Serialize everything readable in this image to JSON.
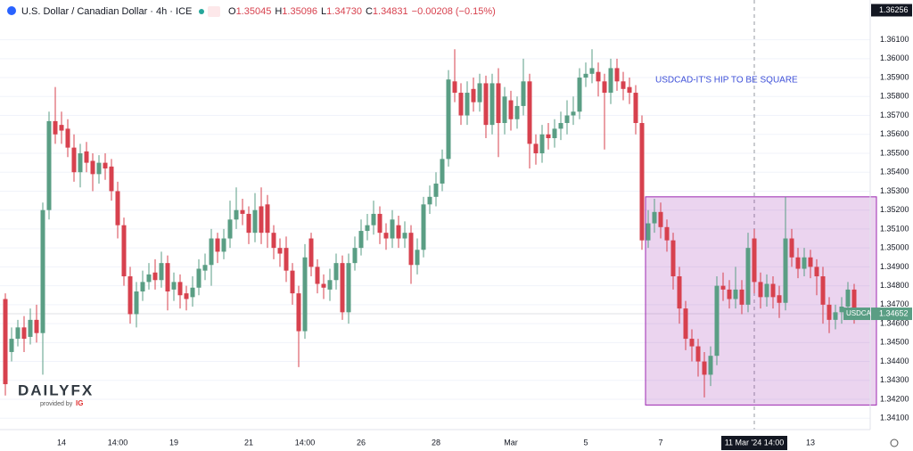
{
  "header": {
    "symbol": "U.S. Dollar / Canadian Dollar · 4h · ICE",
    "ohlc": [
      {
        "label": "O",
        "value": "1.35045"
      },
      {
        "label": "H",
        "value": "1.35096"
      },
      {
        "label": "L",
        "value": "1.34730"
      },
      {
        "label": "C",
        "value": "1.34831"
      }
    ],
    "change": "−0.00208 (−0.15%)"
  },
  "logo": {
    "name": "DAILYFX",
    "provided": "provided by",
    "brand": "IG"
  },
  "chart_data": {
    "type": "candlestick",
    "annotation": "USDCAD-IT'S HIP TO BE SQUARE",
    "categories": [
      null,
      null,
      null,
      null,
      null,
      null,
      null,
      null,
      null,
      "14",
      null,
      null,
      null,
      null,
      null,
      null,
      null,
      null,
      "14:00",
      null,
      null,
      null,
      null,
      null,
      null,
      null,
      null,
      "19",
      null,
      null,
      null,
      null,
      null,
      null,
      null,
      null,
      null,
      null,
      null,
      "21",
      null,
      null,
      null,
      null,
      null,
      null,
      null,
      null,
      "14:00",
      null,
      null,
      null,
      null,
      null,
      null,
      null,
      null,
      "26",
      null,
      null,
      null,
      null,
      null,
      null,
      null,
      null,
      null,
      null,
      null,
      "28",
      null,
      null,
      null,
      null,
      null,
      null,
      null,
      null,
      null,
      null,
      null,
      "Mar",
      null,
      null,
      null,
      null,
      null,
      null,
      null,
      null,
      null,
      null,
      null,
      "5",
      null,
      null,
      null,
      null,
      null,
      null,
      null,
      null,
      null,
      null,
      null,
      "7",
      null,
      null,
      null,
      null,
      null,
      null,
      null,
      null,
      null,
      null,
      null,
      null,
      null,
      null,
      "11 Mar '24  14:00",
      null,
      null,
      null,
      null,
      null,
      null,
      null,
      null,
      "13",
      null,
      null,
      null,
      null,
      null,
      null,
      null
    ],
    "crosshair_index": 120,
    "crosshair_price": 1.36256,
    "series": [
      {
        "name": "USDCAD",
        "up_color": "#5a9e84",
        "down_color": "#d7414e",
        "last_price": 1.34652,
        "open": [
          1.3473,
          1.3445,
          1.3452,
          1.3458,
          1.3453,
          1.3462,
          1.3455,
          1.352,
          1.3567,
          1.3565,
          1.3563,
          1.3553,
          1.354,
          1.3551,
          1.3546,
          1.3539,
          1.3545,
          1.3543,
          1.353,
          1.3512,
          1.3485,
          1.3465,
          1.3477,
          1.3482,
          1.3487,
          1.3483,
          1.3492,
          1.3478,
          1.3482,
          1.3476,
          1.3474,
          1.3479,
          1.3488,
          1.3491,
          1.3505,
          1.3498,
          1.3505,
          1.3515,
          1.352,
          1.3518,
          1.3508,
          1.3522,
          1.3523,
          1.3508,
          1.35,
          1.35,
          1.3488,
          1.3476,
          1.3456,
          1.3505,
          1.349,
          1.3481,
          1.3478,
          1.3483,
          1.3492,
          1.3466,
          1.3492,
          1.35,
          1.3509,
          1.3512,
          1.3518,
          1.3508,
          1.3505,
          1.3512,
          1.3505,
          1.3508,
          1.3491,
          1.3499,
          1.3523,
          1.3527,
          1.3534,
          1.3547,
          1.3588,
          1.3582,
          1.357,
          1.3584,
          1.3577,
          1.3587,
          1.3565,
          1.3587,
          1.3566,
          1.3578,
          1.3568,
          1.3575,
          1.3588,
          1.3555,
          1.355,
          1.356,
          1.3558,
          1.3563,
          1.3566,
          1.357,
          1.3572,
          1.359,
          1.3592,
          1.3593,
          1.3588,
          1.3582,
          1.3595,
          1.3588,
          1.3585,
          1.3582,
          1.3566,
          1.3504,
          1.3513,
          1.3519,
          1.3511,
          1.3504,
          1.3485,
          1.3468,
          1.3452,
          1.3448,
          1.344,
          1.3433,
          1.3443,
          1.348,
          1.3478,
          1.3473,
          1.3478,
          1.347,
          1.3505,
          1.3482,
          1.3474,
          1.3481,
          1.3475,
          1.3471,
          1.3505,
          1.3495,
          1.3489,
          1.3495,
          1.349,
          1.3485,
          1.347,
          1.3462,
          1.3466,
          1.3469,
          1.3478
        ],
        "high": [
          1.3476,
          1.3458,
          1.3462,
          1.3464,
          1.3468,
          1.347,
          1.3524,
          1.3572,
          1.3585,
          1.3572,
          1.3568,
          1.356,
          1.3555,
          1.3556,
          1.355,
          1.3549,
          1.355,
          1.3547,
          1.3535,
          1.3516,
          1.349,
          1.3482,
          1.3488,
          1.3492,
          1.3494,
          1.3498,
          1.3496,
          1.3487,
          1.3486,
          1.348,
          1.3485,
          1.3494,
          1.3497,
          1.351,
          1.3508,
          1.351,
          1.3525,
          1.3532,
          1.3526,
          1.3522,
          1.3529,
          1.3532,
          1.3528,
          1.3512,
          1.3505,
          1.3506,
          1.3492,
          1.348,
          1.3502,
          1.3508,
          1.3494,
          1.3486,
          1.3489,
          1.3497,
          1.3496,
          1.3497,
          1.3506,
          1.3515,
          1.3518,
          1.3525,
          1.3522,
          1.3513,
          1.352,
          1.3517,
          1.3514,
          1.3512,
          1.3505,
          1.3527,
          1.3533,
          1.354,
          1.3552,
          1.3594,
          1.3605,
          1.3587,
          1.3588,
          1.359,
          1.3592,
          1.3591,
          1.3592,
          1.3595,
          1.3585,
          1.3583,
          1.358,
          1.36,
          1.3592,
          1.356,
          1.3565,
          1.3566,
          1.3568,
          1.3572,
          1.3578,
          1.358,
          1.3595,
          1.3598,
          1.3605,
          1.3598,
          1.3592,
          1.36,
          1.36,
          1.3593,
          1.359,
          1.3586,
          1.357,
          1.352,
          1.3526,
          1.3524,
          1.3515,
          1.3508,
          1.349,
          1.3472,
          1.3457,
          1.3452,
          1.3445,
          1.3448,
          1.3485,
          1.3487,
          1.3483,
          1.349,
          1.3483,
          1.3508,
          1.351,
          1.3487,
          1.3486,
          1.3485,
          1.348,
          1.3527,
          1.351,
          1.35,
          1.35,
          1.3499,
          1.3494,
          1.349,
          1.3474,
          1.347,
          1.3474,
          1.3482,
          1.3481
        ],
        "low": [
          1.3422,
          1.344,
          1.3448,
          1.3445,
          1.3449,
          1.345,
          1.3433,
          1.3515,
          1.3555,
          1.3555,
          1.3548,
          1.3535,
          1.3532,
          1.354,
          1.353,
          1.3534,
          1.3536,
          1.3525,
          1.3505,
          1.348,
          1.346,
          1.3458,
          1.3472,
          1.3478,
          1.3478,
          1.3479,
          1.3467,
          1.3472,
          1.3468,
          1.3467,
          1.3469,
          1.3475,
          1.3483,
          1.348,
          1.3492,
          1.3494,
          1.35,
          1.351,
          1.3512,
          1.3502,
          1.3503,
          1.3502,
          1.35,
          1.3494,
          1.349,
          1.3482,
          1.347,
          1.3437,
          1.3452,
          1.3485,
          1.3476,
          1.3473,
          1.3472,
          1.3478,
          1.3462,
          1.346,
          1.3488,
          1.3496,
          1.3504,
          1.3507,
          1.3502,
          1.3499,
          1.35,
          1.35,
          1.35,
          1.3481,
          1.3486,
          1.3495,
          1.3518,
          1.3522,
          1.353,
          1.3543,
          1.3577,
          1.3565,
          1.3565,
          1.3572,
          1.3572,
          1.3558,
          1.356,
          1.3548,
          1.356,
          1.3562,
          1.3563,
          1.357,
          1.3542,
          1.3544,
          1.3545,
          1.3552,
          1.3553,
          1.3557,
          1.356,
          1.3565,
          1.3568,
          1.3585,
          1.3587,
          1.358,
          1.3552,
          1.3576,
          1.3583,
          1.3578,
          1.3576,
          1.356,
          1.3499,
          1.35,
          1.3508,
          1.3505,
          1.3498,
          1.3478,
          1.346,
          1.3446,
          1.344,
          1.3432,
          1.3421,
          1.3427,
          1.3438,
          1.3472,
          1.3468,
          1.3468,
          1.3465,
          1.3466,
          1.3476,
          1.3468,
          1.3469,
          1.3468,
          1.3463,
          1.3467,
          1.349,
          1.3484,
          1.3485,
          1.3484,
          1.3475,
          1.346,
          1.3455,
          1.3457,
          1.346,
          1.3463,
          1.346
        ],
        "close": [
          1.3428,
          1.3452,
          1.3458,
          1.3452,
          1.3462,
          1.3455,
          1.352,
          1.3567,
          1.356,
          1.3562,
          1.3553,
          1.354,
          1.355,
          1.3545,
          1.3539,
          1.3545,
          1.3542,
          1.353,
          1.3512,
          1.3485,
          1.3465,
          1.3477,
          1.3482,
          1.3486,
          1.3483,
          1.3492,
          1.3477,
          1.3482,
          1.3475,
          1.3473,
          1.3479,
          1.3489,
          1.3491,
          1.3505,
          1.3498,
          1.3505,
          1.3515,
          1.352,
          1.3518,
          1.3508,
          1.352,
          1.3508,
          1.3508,
          1.35,
          1.3497,
          1.3488,
          1.3476,
          1.3456,
          1.3495,
          1.349,
          1.3481,
          1.3479,
          1.3483,
          1.3492,
          1.3466,
          1.3492,
          1.35,
          1.3509,
          1.3512,
          1.3518,
          1.3508,
          1.3505,
          1.3515,
          1.3505,
          1.3508,
          1.3491,
          1.3499,
          1.3523,
          1.3527,
          1.3534,
          1.3547,
          1.3589,
          1.3582,
          1.357,
          1.3582,
          1.3577,
          1.3587,
          1.3565,
          1.3587,
          1.3566,
          1.358,
          1.3568,
          1.3575,
          1.3588,
          1.3555,
          1.355,
          1.356,
          1.3558,
          1.3563,
          1.3566,
          1.357,
          1.3572,
          1.359,
          1.3592,
          1.3595,
          1.3588,
          1.3582,
          1.3595,
          1.3588,
          1.3584,
          1.3582,
          1.3566,
          1.3504,
          1.3513,
          1.3519,
          1.3511,
          1.3504,
          1.3485,
          1.3468,
          1.3452,
          1.3448,
          1.344,
          1.3433,
          1.3443,
          1.348,
          1.3478,
          1.3473,
          1.3478,
          1.347,
          1.35,
          1.3482,
          1.3474,
          1.3481,
          1.3474,
          1.3471,
          1.3505,
          1.3495,
          1.3489,
          1.3495,
          1.349,
          1.3485,
          1.347,
          1.3462,
          1.3466,
          1.3469,
          1.3478,
          1.3465
        ]
      }
    ],
    "rectangle": {
      "top": 1.3527,
      "bottom": 1.3417,
      "start_index": 103,
      "color": "#9c27b0"
    },
    "ylim": [
      1.3404,
      1.3631
    ],
    "yticks": [
      {
        "value": 1.341,
        "label": "1.34100"
      },
      {
        "value": 1.342,
        "label": "1.34200"
      },
      {
        "value": 1.343,
        "label": "1.34300"
      },
      {
        "value": 1.344,
        "label": "1.34400"
      },
      {
        "value": 1.345,
        "label": "1.34500"
      },
      {
        "value": 1.346,
        "label": "1.34600"
      },
      {
        "value": 1.347,
        "label": "1.34700"
      },
      {
        "value": 1.348,
        "label": "1.34800"
      },
      {
        "value": 1.349,
        "label": "1.34900"
      },
      {
        "value": 1.35,
        "label": "1.35000"
      },
      {
        "value": 1.351,
        "label": "1.35100"
      },
      {
        "value": 1.352,
        "label": "1.35200"
      },
      {
        "value": 1.353,
        "label": "1.35300"
      },
      {
        "value": 1.354,
        "label": "1.35400"
      },
      {
        "value": 1.355,
        "label": "1.35500"
      },
      {
        "value": 1.356,
        "label": "1.35600"
      },
      {
        "value": 1.357,
        "label": "1.35700"
      },
      {
        "value": 1.358,
        "label": "1.35800"
      },
      {
        "value": 1.359,
        "label": "1.35900"
      },
      {
        "value": 1.36,
        "label": "1.36000"
      },
      {
        "value": 1.361,
        "label": "1.36100"
      }
    ],
    "grid": true
  }
}
